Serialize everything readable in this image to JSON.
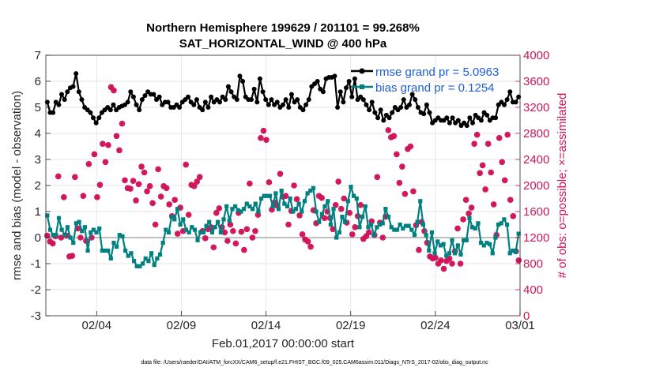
{
  "chart_data": {
    "type": "line",
    "title": "Northern Hemisphere 199629 / 201101 = 99.268%",
    "subtitle": "SAT_HORIZONTAL_WIND @ 400 hPa",
    "xlabel": "Feb.01,2017 00:00:00 start",
    "ylabel": "rmse and bias (model - observation)",
    "y2label": "# of obs: o=possible; ×=assimilated",
    "footer": "data file: /Users/raeder/DAI/ATM_forcXX/CAM6_setup/f.e21.FHIST_BGC.f09_025.CAM6assim.011/Diags_NTrS_2017-02/obs_diag_output.nc",
    "xlim": [
      0,
      28
    ],
    "ylim": [
      -3,
      7
    ],
    "y2lim": [
      0,
      4000
    ],
    "x_ticks": [
      3,
      8,
      13,
      18,
      23,
      28
    ],
    "x_tick_labels": [
      "02/04",
      "02/09",
      "02/14",
      "02/19",
      "02/24",
      "03/01"
    ],
    "y_ticks": [
      -3,
      -2,
      -1,
      0,
      1,
      2,
      3,
      4,
      5,
      6,
      7
    ],
    "y2_ticks": [
      0,
      400,
      800,
      1200,
      1600,
      2000,
      2400,
      2800,
      3200,
      3600,
      4000
    ],
    "legend_location": "top-right",
    "series": [
      {
        "name": "rmse grand pr = 5.0963",
        "color": "#000000",
        "axis": "left",
        "values": [
          5.2,
          4.8,
          4.8,
          5.2,
          5.1,
          5.5,
          5.3,
          5.6,
          5.75,
          5.8,
          6.3,
          5.6,
          5.3,
          5.0,
          4.9,
          4.8,
          4.6,
          4.4,
          4.6,
          4.8,
          4.9,
          5.0,
          4.9,
          5.1,
          4.9,
          5.0,
          5.05,
          5.1,
          5.2,
          5.6,
          5.4,
          5.1,
          4.9,
          5.3,
          5.45,
          5.6,
          5.5,
          5.5,
          5.3,
          5.4,
          5.1,
          5.2,
          5.2,
          5.0,
          5.0,
          5.1,
          5.0,
          5.2,
          5.3,
          5.4,
          5.2,
          5.1,
          5.3,
          5.0,
          4.9,
          5.2,
          5.0,
          5.4,
          5.2,
          5.3,
          5.2,
          5.4,
          5.3,
          5.8,
          5.6,
          5.4,
          5.3,
          6.2,
          6.0,
          5.4,
          5.3,
          5.3,
          5.7,
          5.2,
          6.1,
          5.6,
          5.3,
          5.1,
          5.3,
          5.1,
          5.2,
          5.0,
          5.1,
          5.3,
          5.0,
          5.5,
          5.2,
          5.3,
          5.0,
          4.9,
          5.1,
          5.3,
          5.8,
          5.9,
          6.0,
          5.7,
          5.6,
          6.1,
          6.15,
          6.15,
          6.2,
          5.0,
          5.6,
          5.2,
          5.75,
          6.0,
          5.4,
          6.1,
          5.3,
          5.4,
          5.3,
          5.1,
          4.9,
          5.2,
          4.8,
          4.6,
          4.9,
          4.5,
          4.7,
          4.6,
          4.8,
          5.0,
          4.9,
          5.0,
          5.3,
          5.0,
          5.1,
          5.5,
          5.3,
          5.0,
          4.8,
          4.75,
          5.1,
          4.8,
          4.4,
          4.5,
          4.6,
          4.5,
          4.5,
          4.6,
          4.4,
          4.6,
          4.4,
          4.5,
          4.3,
          4.4,
          4.3,
          4.6,
          4.4,
          4.7,
          4.6,
          4.5,
          4.8,
          4.7,
          4.5,
          4.6,
          4.6,
          5.1,
          5.2,
          5.1,
          5.3,
          5.6,
          5.2,
          5.2,
          5.4
        ]
      },
      {
        "name": "bias grand pr = 0.1254",
        "color": "#008080",
        "axis": "left",
        "values": [
          0.85,
          0.3,
          0.1,
          0.1,
          0.75,
          0.3,
          0.1,
          0.4,
          0.0,
          -0.2,
          0.55,
          0.6,
          0.25,
          0.4,
          -0.5,
          0.2,
          0.3,
          0.2,
          0.35,
          -0.5,
          -0.5,
          -0.5,
          -0.8,
          -0.2,
          -0.35,
          0.1,
          0.05,
          -0.5,
          -0.7,
          -0.6,
          -0.9,
          -1.1,
          -1.1,
          -1.0,
          -0.8,
          -0.9,
          -0.6,
          -1.05,
          -0.8,
          -0.65,
          -0.2,
          0.3,
          0.2,
          0.8,
          0.7,
          1.1,
          0.5,
          0.7,
          0.3,
          0.2,
          0.4,
          0.3,
          -0.1,
          0.2,
          0.2,
          0.45,
          0.6,
          0.2,
          0.4,
          0.6,
          0.2,
          0.7,
          1.2,
          0.65,
          1.1,
          1.2,
          1.05,
          1.0,
          1.1,
          1.3,
          1.2,
          1.1,
          1.3,
          1.0,
          1.5,
          1.6,
          1.6,
          1.6,
          1.2,
          1.7,
          1.1,
          1.8,
          1.3,
          1.2,
          1.5,
          1.0,
          1.1,
          1.3,
          1.0,
          1.4,
          1.7,
          1.8,
          1.9,
          1.0,
          0.6,
          0.9,
          1.2,
          1.4,
          0.5,
          1.1,
          0.0,
          0.2,
          0.8,
          0.6,
          1.4,
          1.95,
          1.6,
          1.5,
          0.4,
          0.8,
          1.2,
          0.4,
          0.5,
          0.1,
          0.4,
          0.5,
          0.55,
          1.1,
          0.8,
          0.4,
          0.3,
          0.3,
          0.5,
          0.35,
          0.45,
          0.45,
          0.3,
          0.1,
          0.6,
          1.4,
          0.5,
          0.1,
          -0.5,
          0.2,
          -0.6,
          -0.15,
          -0.3,
          -0.25,
          -0.7,
          -0.6,
          -0.1,
          -0.6,
          -0.3,
          -0.65,
          -0.1,
          -0.1,
          0.75,
          0.4,
          0.35,
          0.55,
          -0.2,
          -0.3,
          -0.2,
          -0.25,
          -0.6,
          0.0,
          0.5,
          0.55,
          0.7,
          0.5,
          -0.6,
          -0.5,
          -0.55,
          0.15
        ]
      },
      {
        "name": "obs possible (o)",
        "color": "#d1145a",
        "axis": "right",
        "values": [
          1230,
          1140,
          1110,
          1220,
          2140,
          1200,
          1820,
          1230,
          910,
          920,
          2130,
          1340,
          1200,
          1840,
          1150,
          2330,
          1200,
          2480,
          1820,
          2010,
          2640,
          2360,
          2620,
          3510,
          3460,
          2760,
          2540,
          2950,
          2080,
          1960,
          1950,
          2070,
          1770,
          2020,
          2290,
          2200,
          1910,
          1990,
          1730,
          1400,
          2250,
          1830,
          1990,
          1960,
          1710,
          1530,
          1780,
          1260,
          1660,
          1300,
          2320,
          1550,
          2010,
          1990,
          2060,
          2130,
          1300,
          1190,
          1330,
          1360,
          1050,
          1580,
          1650,
          1360,
          1280,
          1150,
          1400,
          1300,
          1110,
          1580,
          1290,
          1010,
          1330,
          2030,
          1200,
          1300,
          1550,
          2730,
          2840,
          2700,
          2050,
          1630,
          1740,
          1690,
          2180,
          1830,
          1840,
          1400,
          1610,
          2000,
          1790,
          1540,
          1250,
          1170,
          1140,
          1060,
          1620,
          1420,
          1840,
          1810,
          1500,
          1600,
          1500,
          1330,
          1700,
          2060,
          1640,
          1800,
          1430,
          1580,
          1250,
          1360,
          1530,
          1700,
          1180,
          1220,
          1280,
          1450,
          1240,
          2130,
          1430,
          1200,
          1520,
          2850,
          2740,
          2760,
          2480,
          2040,
          2290,
          1870,
          2560,
          2600,
          1910,
          1390,
          1010,
          1440,
          1300,
          1120,
          910,
          880,
          890,
          800,
          850,
          720,
          840,
          880,
          800,
          990,
          1340,
          800,
          1480,
          1780,
          1570,
          1660,
          2640,
          2780,
          2190,
          2310,
          1940,
          2640,
          2200,
          1710,
          1240,
          2730,
          2360,
          2080,
          2780,
          1780,
          1530,
          990,
          850
        ]
      },
      {
        "name": "obs assimilated (×)",
        "color": "#d1145a",
        "axis": "right",
        "values": [
          1230,
          1140,
          1110,
          1220,
          2140,
          1200,
          1820,
          1230,
          910,
          920,
          2130,
          1340,
          1200,
          1840,
          1150,
          2330,
          1200,
          2480,
          1820,
          2010,
          2640,
          2360,
          2620,
          3510,
          3460,
          2760,
          2540,
          2950,
          2080,
          1960,
          1950,
          2070,
          1770,
          2020,
          2290,
          2200,
          1910,
          1990,
          1730,
          1400,
          2250,
          1830,
          1990,
          1960,
          1710,
          1530,
          1780,
          1260,
          1660,
          1300,
          2320,
          1550,
          2010,
          1990,
          2060,
          2130,
          1300,
          1190,
          1330,
          1360,
          1050,
          1580,
          1650,
          1360,
          1280,
          1150,
          1400,
          1300,
          1110,
          1580,
          1290,
          1010,
          1330,
          2030,
          1200,
          1300,
          1550,
          2730,
          2840,
          2700,
          2050,
          1630,
          1740,
          1690,
          2180,
          1830,
          1840,
          1400,
          1610,
          2000,
          1790,
          1540,
          1250,
          1170,
          1140,
          1060,
          1620,
          1420,
          1840,
          1810,
          1500,
          1600,
          1500,
          1330,
          1700,
          2060,
          1640,
          1800,
          1430,
          1580,
          1250,
          1360,
          1530,
          1700,
          1180,
          1220,
          1280,
          1450,
          1240,
          2130,
          1430,
          1200,
          1520,
          2850,
          2740,
          2760,
          2480,
          2040,
          2290,
          1870,
          2560,
          2600,
          1910,
          1390,
          1010,
          1440,
          1300,
          1120,
          910,
          880,
          890,
          800,
          850,
          720,
          840,
          880,
          800,
          990,
          1340,
          800,
          1480,
          1780,
          1570,
          1660,
          2640,
          2780,
          2190,
          2310,
          1940,
          2640,
          2200,
          1710,
          1240,
          2730,
          2360,
          2080,
          2780,
          1780,
          1530,
          990,
          850
        ]
      }
    ]
  }
}
